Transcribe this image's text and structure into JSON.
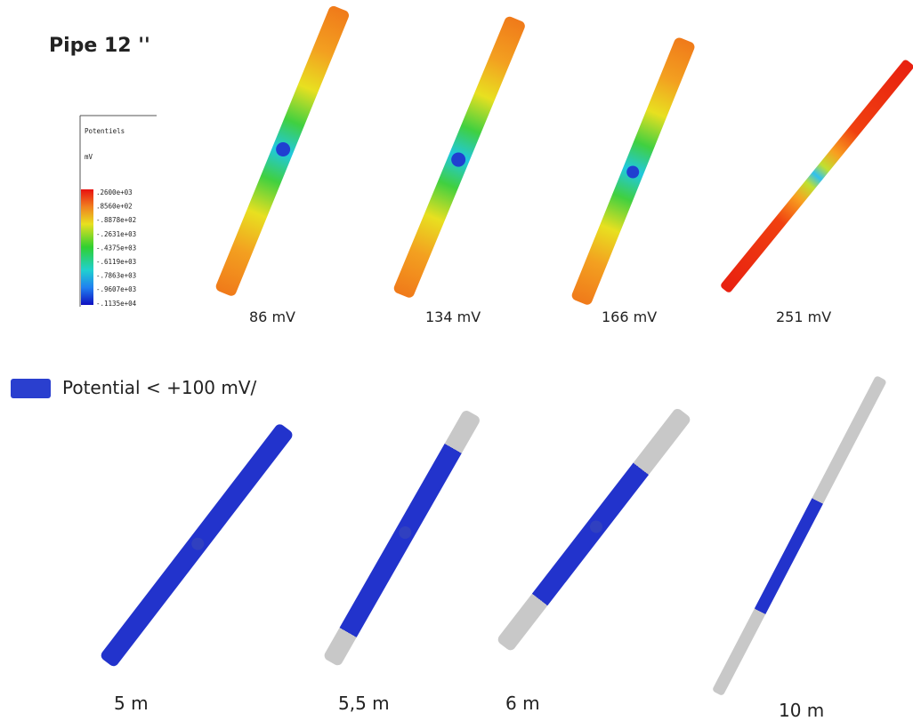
{
  "title": "Pipe 12 ''",
  "scale": {
    "title": "Potentiels",
    "unit": "mV",
    "labels": [
      ".2600e+03",
      ".8560e+02",
      "-.8878e+02",
      "-.2631e+03",
      "-.4375e+03",
      "-.6119e+03",
      "-.7863e+03",
      "-.9607e+03",
      "-.1135e+04"
    ]
  },
  "top_row": {
    "labels": [
      "86 mV",
      "134 mV",
      "166 mV",
      "251 mV"
    ]
  },
  "legend": {
    "label": "Potential < +100 mV/"
  },
  "bottom_row": {
    "labels": [
      "5 m",
      "5,5 m",
      "6 m",
      "10 m"
    ]
  }
}
